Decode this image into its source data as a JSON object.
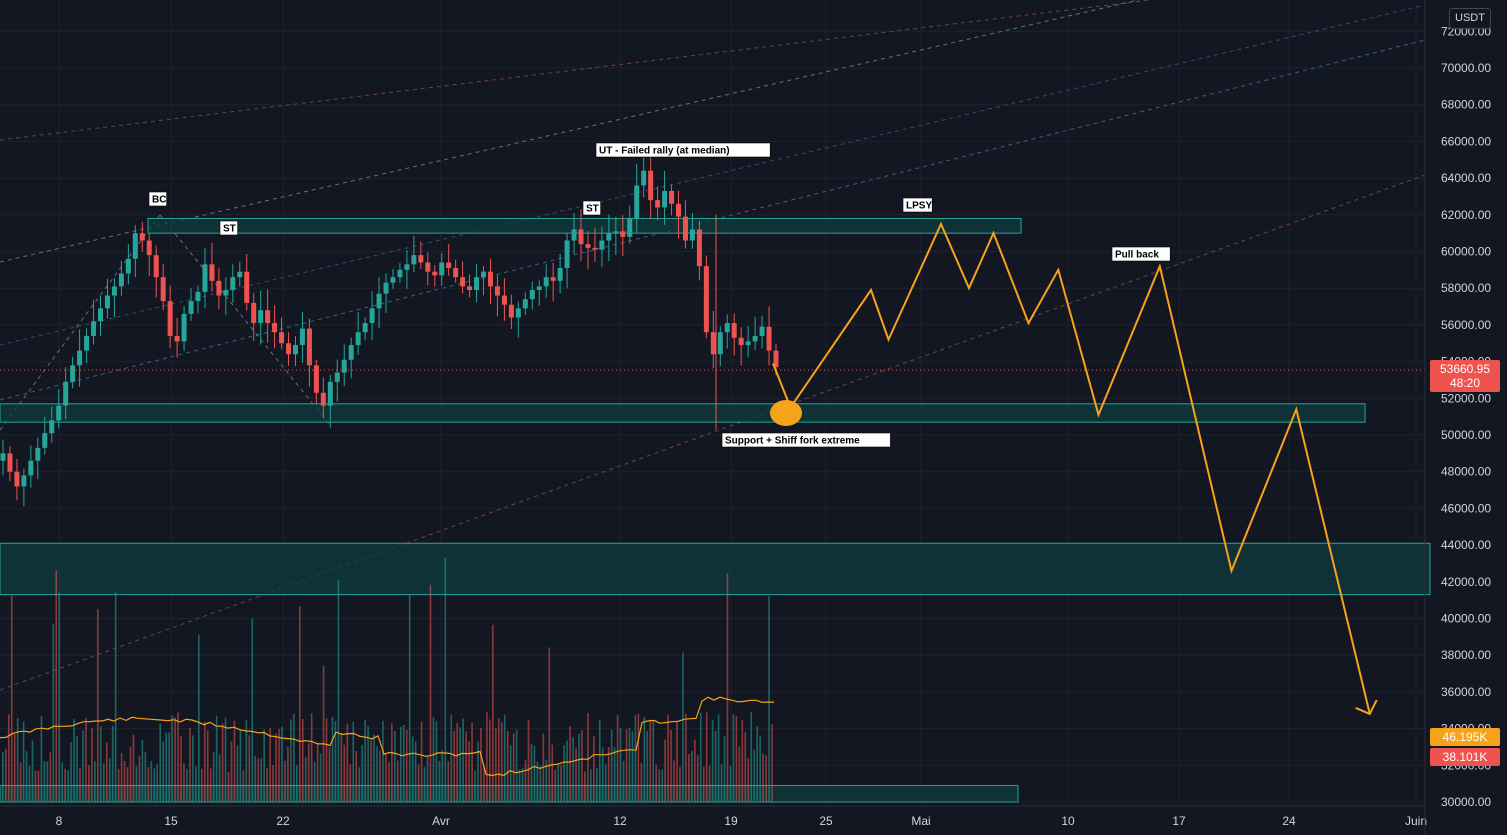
{
  "currency": "USDT",
  "colors": {
    "background": "#131722",
    "zone_fill": "#0f3c3f",
    "zone_stroke": "#26a69a",
    "candle_up": "#26a69a",
    "candle_down": "#ef5350",
    "projection": "#f7a21b",
    "price_badge": "#ef5350",
    "ma_badge": "#f7a21b"
  },
  "badges": {
    "last_price": "53660.95",
    "countdown": "48:20",
    "volume_ma": "46.195K",
    "volume": "38.101K"
  },
  "annotations": {
    "bc": "BC",
    "st1": "ST",
    "st2": "ST",
    "ut": "UT - Failed rally (at median)",
    "lpsy": "LPSY",
    "pullback": "Pull back",
    "support": "Support + Shiff fork extreme"
  },
  "chart_data": {
    "type": "candlestick",
    "y_axis": {
      "ticks": [
        30000,
        32000,
        34000,
        36000,
        38000,
        40000,
        42000,
        44000,
        46000,
        48000,
        50000,
        52000,
        54000,
        56000,
        58000,
        60000,
        62000,
        64000,
        66000,
        68000,
        70000,
        72000
      ],
      "tick_labels": [
        "30000.00",
        "32000.00",
        "34000.00",
        "36000.00",
        "38000.00",
        "40000.00",
        "42000.00",
        "44000.00",
        "46000.00",
        "48000.00",
        "50000.00",
        "52000.00",
        "54000.00",
        "56000.00",
        "58000.00",
        "60000.00",
        "62000.00",
        "64000.00",
        "66000.00",
        "68000.00",
        "70000.00",
        "72000.00"
      ],
      "range": [
        29700,
        73500
      ]
    },
    "x_axis": {
      "labels": [
        "8",
        "15",
        "22",
        "Avr",
        "12",
        "19",
        "25",
        "Mai",
        "10",
        "17",
        "24",
        "Juin"
      ]
    },
    "zones": [
      {
        "name": "resistance",
        "y_low": 61000,
        "y_high": 61800
      },
      {
        "name": "support",
        "y_low": 50700,
        "y_high": 51700
      },
      {
        "name": "lower-demand",
        "y_low": 41300,
        "y_high": 44100
      },
      {
        "name": "volume-band",
        "y_low": 30000,
        "y_high": 30900
      }
    ],
    "projection_path": [
      {
        "day": 44,
        "price": 53900
      },
      {
        "day": 45,
        "price": 51500
      },
      {
        "day": 49.6,
        "price": 57900
      },
      {
        "day": 50.6,
        "price": 55200
      },
      {
        "day": 53.6,
        "price": 61500
      },
      {
        "day": 55.2,
        "price": 58000
      },
      {
        "day": 56.6,
        "price": 61000
      },
      {
        "day": 58.6,
        "price": 56100
      },
      {
        "day": 60.3,
        "price": 59000
      },
      {
        "day": 62.6,
        "price": 51100
      },
      {
        "day": 66.1,
        "price": 59200
      },
      {
        "day": 70.2,
        "price": 42600
      },
      {
        "day": 73.9,
        "price": 51400
      },
      {
        "day": 78.1,
        "price": 34800
      }
    ],
    "price_series_close": [
      49000,
      48000,
      47200,
      47800,
      48600,
      49300,
      50100,
      50800,
      51600,
      52900,
      53800,
      54600,
      55400,
      56200,
      56900,
      57600,
      58100,
      58800,
      59600,
      61000,
      60600,
      59800,
      58600,
      57300,
      55400,
      55100,
      56600,
      57300,
      57800,
      59300,
      58400,
      57600,
      57900,
      58600,
      58900,
      57200,
      56100,
      56800,
      56100,
      55600,
      55000,
      54400,
      54900,
      55800,
      53800,
      52300,
      51600,
      52900,
      53400,
      54100,
      54900,
      55600,
      56100,
      56900,
      57700,
      58300,
      58600,
      59000,
      59300,
      59800,
      59400,
      58900,
      58700,
      59400,
      59100,
      58600,
      58100,
      57900,
      58600,
      58900,
      58100,
      57600,
      57100,
      56400,
      56900,
      57400,
      57900,
      58100,
      58600,
      58400,
      59100,
      60600,
      61200,
      60400,
      60200,
      60100,
      60600,
      61000,
      61100,
      60800,
      61800,
      63600,
      64400,
      62800,
      62400,
      63300,
      62600,
      61900,
      60600,
      61200,
      59200,
      55600,
      54400,
      55600,
      56100,
      55300,
      54900,
      55100,
      55400,
      55900,
      54600,
      53700
    ]
  }
}
